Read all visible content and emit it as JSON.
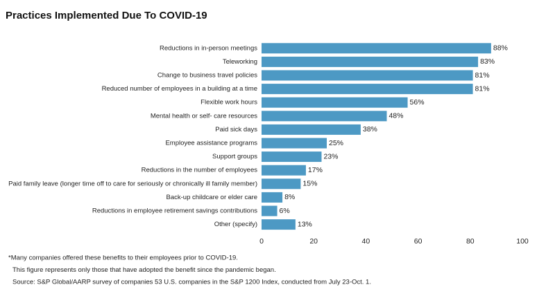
{
  "chart_data": {
    "type": "hbar",
    "title": "Practices Implemented Due To COVID-19",
    "categories": [
      "Reductions in in-person meetings",
      "Teleworking",
      "Change to business travel policies",
      "Reduced number of employees in a building at a time",
      "Flexible work hours",
      "Mental health or self- care resources",
      "Paid sick days",
      "Employee assistance programs",
      "Support groups",
      "Reductions in the number of employees",
      "Paid family leave (longer time off to care for seriously or chronically ill family member)",
      "Back-up childcare or elder care",
      "Reductions in employee retirement savings contributions",
      "Other (specify)"
    ],
    "values": [
      88,
      83,
      81,
      81,
      56,
      48,
      38,
      25,
      23,
      17,
      15,
      8,
      6,
      13
    ],
    "value_labels": [
      "88%",
      "83%",
      "81%",
      "81%",
      "56%",
      "48%",
      "38%",
      "25%",
      "23%",
      "17%",
      "15%",
      "8%",
      "6%",
      "13%"
    ],
    "color": "#4d99c4",
    "xlim": [
      0,
      100
    ],
    "xticks": [
      0,
      20,
      40,
      60,
      80,
      100
    ],
    "notes": [
      "*Many companies offered these benefits to their employees prior to COVID-19.",
      "This figure represents only those that have adopted the benefit since the pandemic began.",
      "Source: S&P Global/AARP survey of companies 53 U.S. companies in the S&P 1200 Index, conducted from July 23-Oct. 1."
    ]
  }
}
